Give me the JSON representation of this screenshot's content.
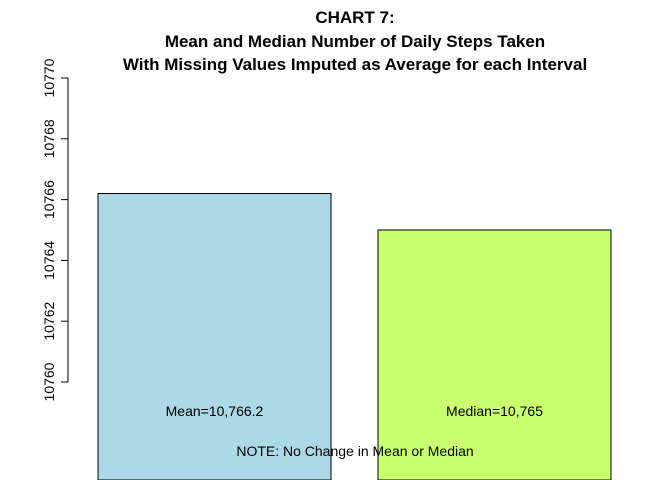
{
  "chart_data": {
    "type": "bar",
    "title_lines": [
      "CHART 7:",
      "Mean and Median Number of Daily Steps Taken",
      "With Missing Values Imputed as Average for each Interval"
    ],
    "categories": [
      "Mean",
      "Median"
    ],
    "values": [
      10766.2,
      10765
    ],
    "bar_labels": [
      "Mean=10,766.2",
      "Median=10,765"
    ],
    "colors": [
      "#add8e6",
      "#caff70"
    ],
    "ylim": [
      10760,
      10770
    ],
    "yticks": [
      "10760",
      "10762",
      "10764",
      "10766",
      "10768",
      "10770"
    ],
    "xlabel": "",
    "ylabel": "",
    "grid": false,
    "legend": "none",
    "note": "NOTE: No Change in Mean or Median"
  }
}
